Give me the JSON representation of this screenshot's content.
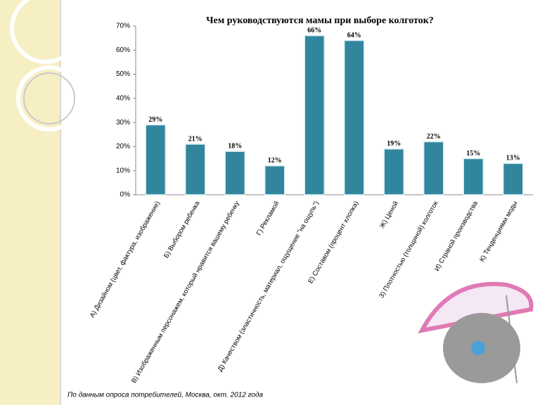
{
  "chart_data": {
    "type": "bar",
    "title": "Чем руководствуются мамы при выборе колготок?",
    "categories": [
      "А) Дизайном (цвет, фактура, изображение)",
      "Б) Выбором ребенка",
      "В) Изображенным персонажем, который нравится вашему ребенку",
      "Г) Рекламой",
      "Д) Качеством (эластичность, материал, ощущение \"на ощупь\")",
      "Е) Составом (процент хлопка)",
      "Ж) Ценой",
      "З) Плотностью (толщиной) колготок",
      "И) Страной производства",
      "К) Тенденциями моды"
    ],
    "values": [
      29,
      21,
      18,
      12,
      66,
      64,
      19,
      22,
      15,
      13
    ],
    "value_labels": [
      "29%",
      "21%",
      "18%",
      "12%",
      "66%",
      "64%",
      "19%",
      "22%",
      "15%",
      "13%"
    ],
    "color": "#31859c",
    "ylim": [
      0,
      70
    ],
    "yticks": [
      {
        "value": 0,
        "label": "0%"
      },
      {
        "value": 10,
        "label": "10%"
      },
      {
        "value": 20,
        "label": "20%"
      },
      {
        "value": 30,
        "label": "30%"
      },
      {
        "value": 40,
        "label": "40%"
      },
      {
        "value": 50,
        "label": "50%"
      },
      {
        "value": 60,
        "label": "60%"
      },
      {
        "value": 70,
        "label": "70%"
      }
    ],
    "grid": false
  },
  "footer": "По данным опроса потребителей, Москва, окт. 2012 года"
}
